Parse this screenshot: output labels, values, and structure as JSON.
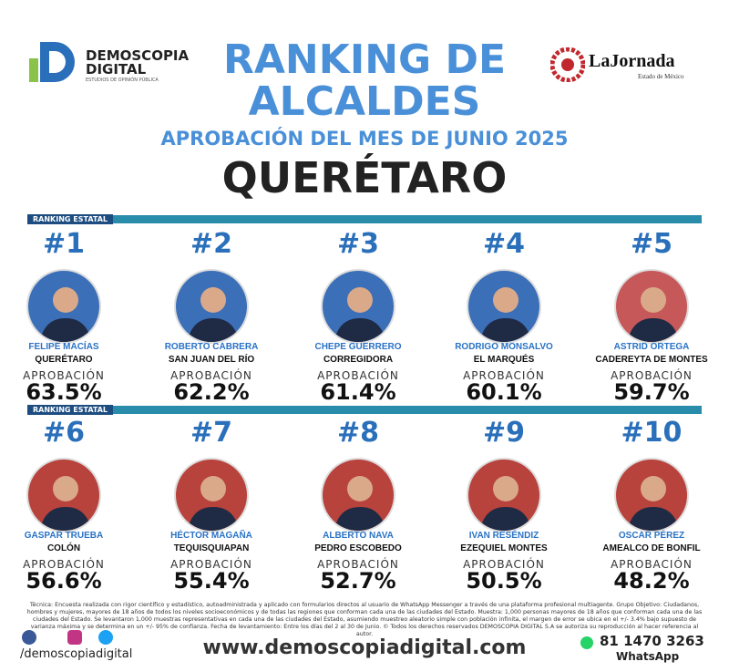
{
  "header": {
    "brand": {
      "name": "DEMOSCOPIA DIGITAL",
      "tagline": "ESTUDIOS DE OPINIÓN PÚBLICA"
    },
    "partner": {
      "name": "LaJornada",
      "region": "Estado de México"
    },
    "title_line1": "RANKING DE",
    "title_line2": "ALCALDES",
    "subtitle": "APROBACIÓN DEL MES DE JUNIO 2025",
    "state": "QUERÉTARO"
  },
  "section_label": "RANKING ESTATAL",
  "rankings": [
    {
      "rank": "#1",
      "name": "FELIPE MACÍAS",
      "municipality": "QUERÉTARO",
      "label": "APROBACIÓN",
      "approval": "63.5%",
      "bg": "#3b6fb8"
    },
    {
      "rank": "#2",
      "name": "ROBERTO CABRERA",
      "municipality": "SAN JUAN DEL RÍO",
      "label": "APROBACIÓN",
      "approval": "62.2%",
      "bg": "#3b6fb8"
    },
    {
      "rank": "#3",
      "name": "CHEPE GUERRERO",
      "municipality": "CORREGIDORA",
      "label": "APROBACIÓN",
      "approval": "61.4%",
      "bg": "#3b6fb8"
    },
    {
      "rank": "#4",
      "name": "RODRIGO MONSALVO",
      "municipality": "EL MARQUÉS",
      "label": "APROBACIÓN",
      "approval": "60.1%",
      "bg": "#3b6fb8"
    },
    {
      "rank": "#5",
      "name": "ASTRID ORTEGA",
      "municipality": "CADEREYTA DE MONTES",
      "label": "APROBACIÓN",
      "approval": "59.7%",
      "bg": "#c7585a"
    },
    {
      "rank": "#6",
      "name": "GASPAR TRUEBA",
      "municipality": "COLÓN",
      "label": "APROBACIÓN",
      "approval": "56.6%",
      "bg": "#b8423c"
    },
    {
      "rank": "#7",
      "name": "HÉCTOR MAGAÑA",
      "municipality": "TEQUISQUIAPAN",
      "label": "APROBACIÓN",
      "approval": "55.4%",
      "bg": "#b8423c"
    },
    {
      "rank": "#8",
      "name": "ALBERTO NAVA",
      "municipality": "PEDRO ESCOBEDO",
      "label": "APROBACIÓN",
      "approval": "52.7%",
      "bg": "#b8423c"
    },
    {
      "rank": "#9",
      "name": "IVAN RESÉNDIZ",
      "municipality": "EZEQUIEL MONTES",
      "label": "APROBACIÓN",
      "approval": "50.5%",
      "bg": "#b8423c"
    },
    {
      "rank": "#10",
      "name": "OSCAR PÉREZ",
      "municipality": "AMEALCO DE BONFIL",
      "label": "APROBACIÓN",
      "approval": "48.2%",
      "bg": "#b8423c"
    }
  ],
  "footer": {
    "note": "Técnica: Encuesta realizada con rigor científico y estadístico, autoadministrada y aplicado con formularios directos al usuario de WhatsApp Messenger a través de una plataforma profesional multiagente. Grupo Objetivo: Ciudadanos, hombres y mujeres, mayores de 18 años de todos los niveles socioeconómicos y de todas las regiones que conforman cada una de las ciudades del Estado. Muestra: 1,000 personas mayores de 18 años que conforman cada una de las ciudades del Estado. Se levantaron 1,000 muestras representativas en cada una de las ciudades del Estado, asumiendo muestreo aleatorio simple con población infinita, el margen de error se ubica en el +/- 3.4% bajo supuesto de varianza máxima y se determina en un +/- 95% de confianza. Fecha de levantamiento: Entre los días del 2 al 30 de Junio. © Todos los derechos reservados DEMOSCOPIA DIGITAL S.A se autoriza su reproducción al hacer referencia al autor.",
    "handle": "/demoscopiadigital",
    "website": "www.demoscopiadigital.com",
    "phone": "81 1470 3263",
    "whatsapp": "WhatsApp"
  }
}
